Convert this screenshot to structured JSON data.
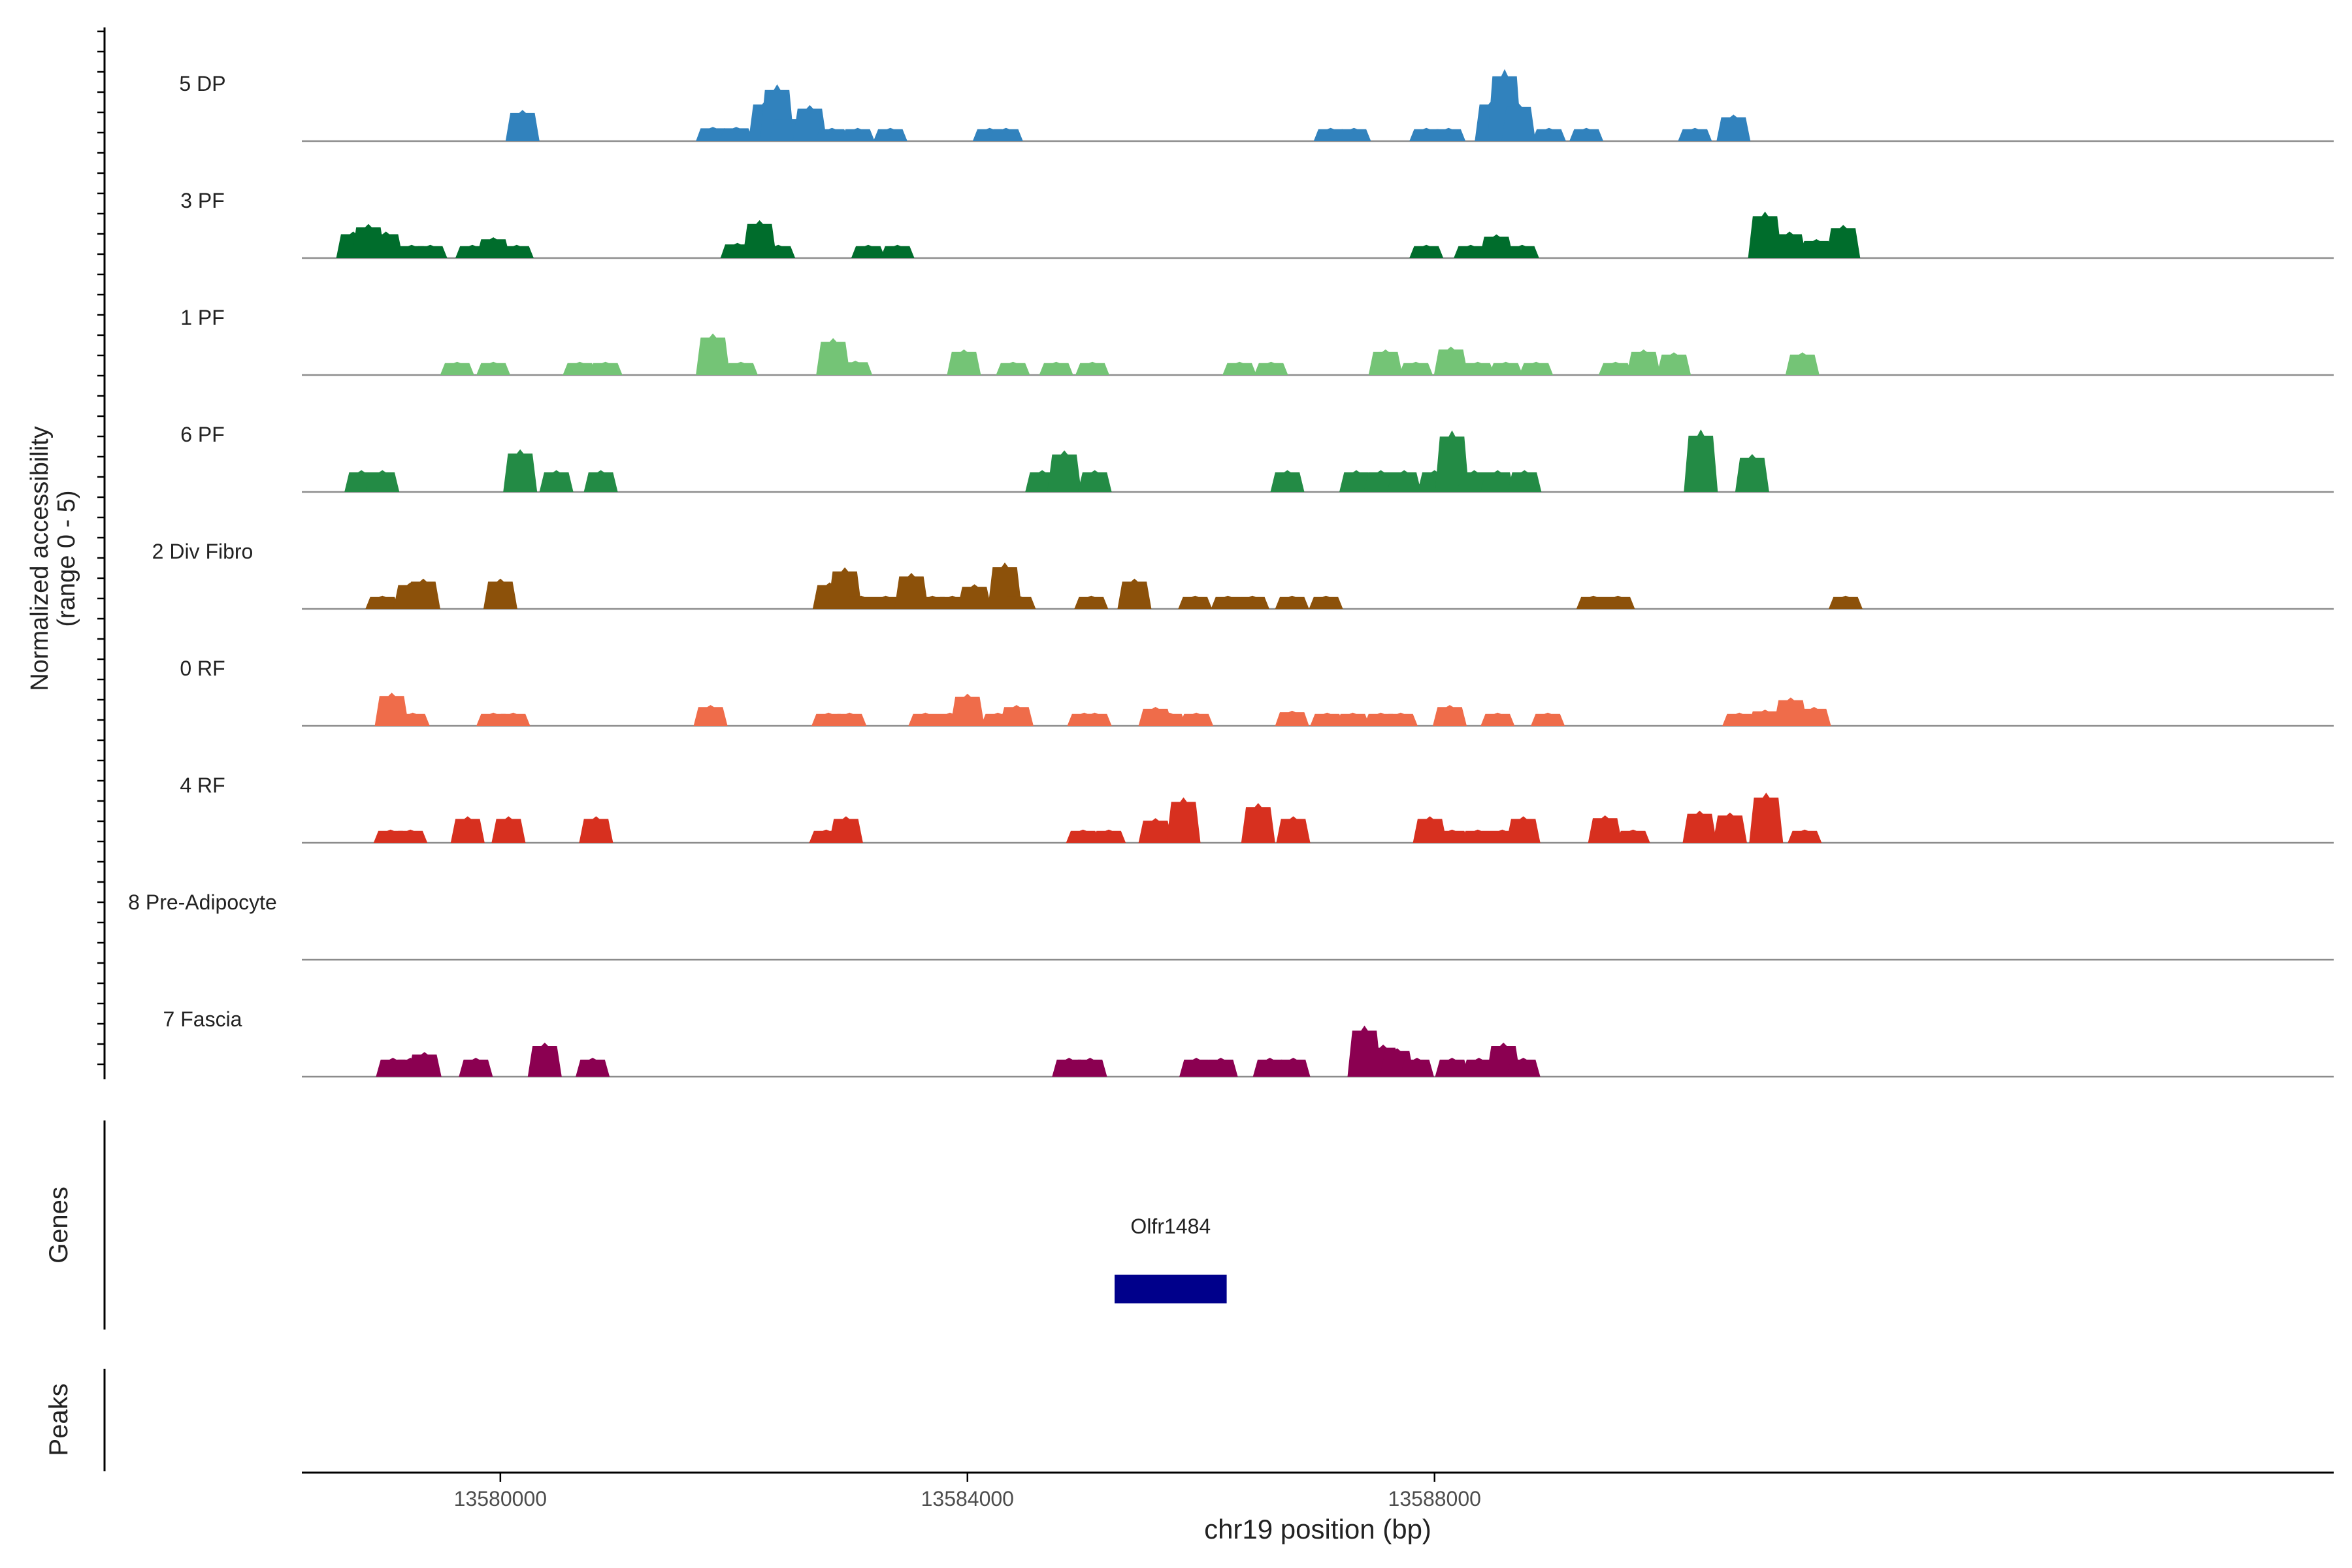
{
  "chart_data": {
    "type": "area",
    "title": "",
    "chromosome": "chr19",
    "xlabel": "chr19 position (bp)",
    "ylabel_line1": "Normalized accessibility",
    "ylabel_line2": "(range 0 - 5)",
    "xlim": [
      13578300,
      13595700
    ],
    "x_ticks": [
      13580000,
      13584000,
      13588000
    ],
    "x_tick_labels": [
      "13580000",
      "13584000",
      "13588000"
    ],
    "ylim": [
      0,
      5
    ],
    "tracks": [
      {
        "name": "5 DP",
        "color": "#3182BD",
        "peaks": [
          [
            13580190,
            3.3
          ],
          [
            13581820,
            1.5
          ],
          [
            13582020,
            1.5
          ],
          [
            13582270,
            4.3
          ],
          [
            13582370,
            6.0
          ],
          [
            13582450,
            2.6
          ],
          [
            13582650,
            3.8
          ],
          [
            13582840,
            1.4
          ],
          [
            13583060,
            1.4
          ],
          [
            13583340,
            1.4
          ],
          [
            13584190,
            1.4
          ],
          [
            13584330,
            1.4
          ],
          [
            13587110,
            1.4
          ],
          [
            13587310,
            1.4
          ],
          [
            13587930,
            1.4
          ],
          [
            13588120,
            1.4
          ],
          [
            13588490,
            4.3
          ],
          [
            13588600,
            7.6
          ],
          [
            13588720,
            4.0
          ],
          [
            13588980,
            1.4
          ],
          [
            13589300,
            1.4
          ],
          [
            13590230,
            1.4
          ],
          [
            13590560,
            2.8
          ]
        ]
      },
      {
        "name": "3 PF",
        "color": "#006D2C",
        "peaks": [
          [
            13578740,
            2.8
          ],
          [
            13578870,
            3.6
          ],
          [
            13579020,
            2.8
          ],
          [
            13579240,
            1.4
          ],
          [
            13579400,
            1.4
          ],
          [
            13579760,
            1.4
          ],
          [
            13579940,
            2.2
          ],
          [
            13580140,
            1.4
          ],
          [
            13582030,
            1.6
          ],
          [
            13582220,
            4.0
          ],
          [
            13582380,
            1.4
          ],
          [
            13583150,
            1.4
          ],
          [
            13583400,
            1.4
          ],
          [
            13587930,
            1.4
          ],
          [
            13588310,
            1.4
          ],
          [
            13588530,
            2.5
          ],
          [
            13588750,
            1.4
          ],
          [
            13590830,
            4.9
          ],
          [
            13591040,
            2.8
          ],
          [
            13591270,
            2.0
          ],
          [
            13591500,
            3.5
          ]
        ]
      },
      {
        "name": "1 PF",
        "color": "#74C476",
        "peaks": [
          [
            13579630,
            1.4
          ],
          [
            13579940,
            1.4
          ],
          [
            13580680,
            1.4
          ],
          [
            13580900,
            1.4
          ],
          [
            13581820,
            4.4
          ],
          [
            13582060,
            1.4
          ],
          [
            13582850,
            3.9
          ],
          [
            13583040,
            1.5
          ],
          [
            13583970,
            2.7
          ],
          [
            13584390,
            1.4
          ],
          [
            13584760,
            1.4
          ],
          [
            13585070,
            1.4
          ],
          [
            13586330,
            1.4
          ],
          [
            13586600,
            1.4
          ],
          [
            13587580,
            2.7
          ],
          [
            13587840,
            1.4
          ],
          [
            13588140,
            3.0
          ],
          [
            13588370,
            1.4
          ],
          [
            13588610,
            1.4
          ],
          [
            13588870,
            1.4
          ],
          [
            13589550,
            1.4
          ],
          [
            13589790,
            2.7
          ],
          [
            13590050,
            2.4
          ],
          [
            13591150,
            2.4
          ]
        ]
      },
      {
        "name": "6 PF",
        "color": "#238B45",
        "peaks": [
          [
            13578810,
            2.3
          ],
          [
            13578990,
            2.3
          ],
          [
            13580170,
            4.5
          ],
          [
            13580480,
            2.3
          ],
          [
            13580860,
            2.3
          ],
          [
            13584640,
            2.3
          ],
          [
            13584830,
            4.4
          ],
          [
            13585090,
            2.3
          ],
          [
            13586740,
            2.3
          ],
          [
            13587330,
            2.3
          ],
          [
            13587540,
            2.3
          ],
          [
            13587740,
            2.3
          ],
          [
            13588000,
            2.3
          ],
          [
            13588150,
            6.5
          ],
          [
            13588340,
            2.3
          ],
          [
            13588540,
            2.3
          ],
          [
            13588770,
            2.3
          ],
          [
            13590280,
            6.6
          ],
          [
            13590720,
            4.0
          ]
        ]
      },
      {
        "name": "2 Div Fibro",
        "color": "#8C510A",
        "peaks": [
          [
            13578990,
            1.4
          ],
          [
            13579230,
            2.8
          ],
          [
            13579340,
            3.2
          ],
          [
            13580000,
            3.2
          ],
          [
            13582820,
            2.8
          ],
          [
            13582950,
            4.4
          ],
          [
            13583090,
            1.4
          ],
          [
            13583300,
            1.4
          ],
          [
            13583520,
            3.8
          ],
          [
            13583700,
            1.4
          ],
          [
            13583870,
            1.4
          ],
          [
            13584060,
            2.6
          ],
          [
            13584320,
            4.9
          ],
          [
            13584440,
            1.4
          ],
          [
            13585060,
            1.4
          ],
          [
            13585430,
            3.2
          ],
          [
            13585950,
            1.4
          ],
          [
            13586230,
            1.4
          ],
          [
            13586440,
            1.4
          ],
          [
            13586780,
            1.4
          ],
          [
            13587070,
            1.4
          ],
          [
            13589360,
            1.4
          ],
          [
            13589570,
            1.4
          ],
          [
            13591520,
            1.4
          ]
        ]
      },
      {
        "name": "0 RF",
        "color": "#EF6C4A",
        "peaks": [
          [
            13579070,
            3.5
          ],
          [
            13579250,
            1.4
          ],
          [
            13579940,
            1.4
          ],
          [
            13580110,
            1.4
          ],
          [
            13581800,
            2.2
          ],
          [
            13582810,
            1.4
          ],
          [
            13582990,
            1.4
          ],
          [
            13583640,
            1.4
          ],
          [
            13583850,
            1.4
          ],
          [
            13584000,
            3.4
          ],
          [
            13584260,
            1.4
          ],
          [
            13584420,
            2.2
          ],
          [
            13585000,
            1.4
          ],
          [
            13585090,
            1.4
          ],
          [
            13585610,
            2.0
          ],
          [
            13585730,
            1.4
          ],
          [
            13585960,
            1.4
          ],
          [
            13586780,
            1.6
          ],
          [
            13587080,
            1.4
          ],
          [
            13587300,
            1.4
          ],
          [
            13587540,
            1.4
          ],
          [
            13587710,
            1.4
          ],
          [
            13588130,
            2.2
          ],
          [
            13588540,
            1.4
          ],
          [
            13588970,
            1.4
          ],
          [
            13590610,
            1.4
          ],
          [
            13590830,
            1.7
          ],
          [
            13591050,
            3.0
          ],
          [
            13591250,
            2.0
          ]
        ]
      },
      {
        "name": "4 RF",
        "color": "#D7301F",
        "peaks": [
          [
            13579060,
            1.4
          ],
          [
            13579230,
            1.4
          ],
          [
            13579720,
            2.8
          ],
          [
            13580070,
            2.8
          ],
          [
            13580820,
            2.8
          ],
          [
            13582790,
            1.4
          ],
          [
            13582960,
            2.8
          ],
          [
            13584990,
            1.4
          ],
          [
            13585210,
            1.4
          ],
          [
            13585610,
            2.6
          ],
          [
            13585850,
            4.8
          ],
          [
            13586490,
            4.2
          ],
          [
            13586790,
            2.8
          ],
          [
            13587960,
            2.8
          ],
          [
            13588150,
            1.4
          ],
          [
            13588370,
            1.4
          ],
          [
            13588580,
            1.4
          ],
          [
            13588760,
            2.8
          ],
          [
            13589460,
            2.9
          ],
          [
            13589700,
            1.4
          ],
          [
            13590270,
            3.4
          ],
          [
            13590530,
            3.2
          ],
          [
            13590840,
            5.3
          ],
          [
            13591170,
            1.4
          ]
        ]
      },
      {
        "name": "8 Pre-Adipocyte",
        "color": "#C51B7D",
        "peaks": []
      },
      {
        "name": "7 Fascia",
        "color": "#8B0051",
        "peaks": [
          [
            13579080,
            2.0
          ],
          [
            13579230,
            2.0
          ],
          [
            13579350,
            2.6
          ],
          [
            13579790,
            2.0
          ],
          [
            13580380,
            3.6
          ],
          [
            13580790,
            2.0
          ],
          [
            13584870,
            2.0
          ],
          [
            13585050,
            2.0
          ],
          [
            13585960,
            2.0
          ],
          [
            13586170,
            2.0
          ],
          [
            13586590,
            2.0
          ],
          [
            13586790,
            2.0
          ],
          [
            13587400,
            5.4
          ],
          [
            13587560,
            3.4
          ],
          [
            13587680,
            3.0
          ],
          [
            13587850,
            2.0
          ],
          [
            13588150,
            2.0
          ],
          [
            13588380,
            2.0
          ],
          [
            13588590,
            3.6
          ],
          [
            13588760,
            2.0
          ]
        ]
      }
    ],
    "genes": [
      {
        "name": "Olfr1484",
        "start": 13585260,
        "end": 13586220,
        "color": "#00008B"
      }
    ],
    "panel_labels": {
      "genes": "Genes",
      "peaks": "Peaks"
    }
  }
}
